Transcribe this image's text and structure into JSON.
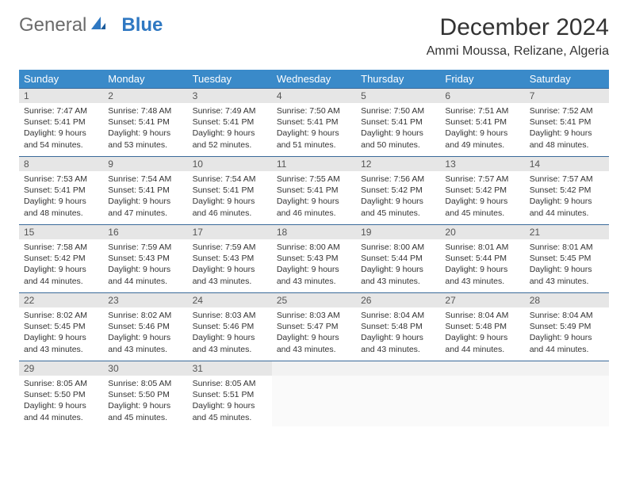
{
  "logo": {
    "text1": "General",
    "text2": "Blue"
  },
  "title": "December 2024",
  "location": "Ammi Moussa, Relizane, Algeria",
  "colors": {
    "header_bg": "#3a8ac9",
    "header_fg": "#ffffff",
    "row_border": "#3a6a9a",
    "daynum_bg": "#e6e6e6",
    "logo_blue": "#2f78c2"
  },
  "day_names": [
    "Sunday",
    "Monday",
    "Tuesday",
    "Wednesday",
    "Thursday",
    "Friday",
    "Saturday"
  ],
  "weeks": [
    [
      {
        "n": "1",
        "sr": "Sunrise: 7:47 AM",
        "ss": "Sunset: 5:41 PM",
        "d1": "Daylight: 9 hours",
        "d2": "and 54 minutes."
      },
      {
        "n": "2",
        "sr": "Sunrise: 7:48 AM",
        "ss": "Sunset: 5:41 PM",
        "d1": "Daylight: 9 hours",
        "d2": "and 53 minutes."
      },
      {
        "n": "3",
        "sr": "Sunrise: 7:49 AM",
        "ss": "Sunset: 5:41 PM",
        "d1": "Daylight: 9 hours",
        "d2": "and 52 minutes."
      },
      {
        "n": "4",
        "sr": "Sunrise: 7:50 AM",
        "ss": "Sunset: 5:41 PM",
        "d1": "Daylight: 9 hours",
        "d2": "and 51 minutes."
      },
      {
        "n": "5",
        "sr": "Sunrise: 7:50 AM",
        "ss": "Sunset: 5:41 PM",
        "d1": "Daylight: 9 hours",
        "d2": "and 50 minutes."
      },
      {
        "n": "6",
        "sr": "Sunrise: 7:51 AM",
        "ss": "Sunset: 5:41 PM",
        "d1": "Daylight: 9 hours",
        "d2": "and 49 minutes."
      },
      {
        "n": "7",
        "sr": "Sunrise: 7:52 AM",
        "ss": "Sunset: 5:41 PM",
        "d1": "Daylight: 9 hours",
        "d2": "and 48 minutes."
      }
    ],
    [
      {
        "n": "8",
        "sr": "Sunrise: 7:53 AM",
        "ss": "Sunset: 5:41 PM",
        "d1": "Daylight: 9 hours",
        "d2": "and 48 minutes."
      },
      {
        "n": "9",
        "sr": "Sunrise: 7:54 AM",
        "ss": "Sunset: 5:41 PM",
        "d1": "Daylight: 9 hours",
        "d2": "and 47 minutes."
      },
      {
        "n": "10",
        "sr": "Sunrise: 7:54 AM",
        "ss": "Sunset: 5:41 PM",
        "d1": "Daylight: 9 hours",
        "d2": "and 46 minutes."
      },
      {
        "n": "11",
        "sr": "Sunrise: 7:55 AM",
        "ss": "Sunset: 5:41 PM",
        "d1": "Daylight: 9 hours",
        "d2": "and 46 minutes."
      },
      {
        "n": "12",
        "sr": "Sunrise: 7:56 AM",
        "ss": "Sunset: 5:42 PM",
        "d1": "Daylight: 9 hours",
        "d2": "and 45 minutes."
      },
      {
        "n": "13",
        "sr": "Sunrise: 7:57 AM",
        "ss": "Sunset: 5:42 PM",
        "d1": "Daylight: 9 hours",
        "d2": "and 45 minutes."
      },
      {
        "n": "14",
        "sr": "Sunrise: 7:57 AM",
        "ss": "Sunset: 5:42 PM",
        "d1": "Daylight: 9 hours",
        "d2": "and 44 minutes."
      }
    ],
    [
      {
        "n": "15",
        "sr": "Sunrise: 7:58 AM",
        "ss": "Sunset: 5:42 PM",
        "d1": "Daylight: 9 hours",
        "d2": "and 44 minutes."
      },
      {
        "n": "16",
        "sr": "Sunrise: 7:59 AM",
        "ss": "Sunset: 5:43 PM",
        "d1": "Daylight: 9 hours",
        "d2": "and 44 minutes."
      },
      {
        "n": "17",
        "sr": "Sunrise: 7:59 AM",
        "ss": "Sunset: 5:43 PM",
        "d1": "Daylight: 9 hours",
        "d2": "and 43 minutes."
      },
      {
        "n": "18",
        "sr": "Sunrise: 8:00 AM",
        "ss": "Sunset: 5:43 PM",
        "d1": "Daylight: 9 hours",
        "d2": "and 43 minutes."
      },
      {
        "n": "19",
        "sr": "Sunrise: 8:00 AM",
        "ss": "Sunset: 5:44 PM",
        "d1": "Daylight: 9 hours",
        "d2": "and 43 minutes."
      },
      {
        "n": "20",
        "sr": "Sunrise: 8:01 AM",
        "ss": "Sunset: 5:44 PM",
        "d1": "Daylight: 9 hours",
        "d2": "and 43 minutes."
      },
      {
        "n": "21",
        "sr": "Sunrise: 8:01 AM",
        "ss": "Sunset: 5:45 PM",
        "d1": "Daylight: 9 hours",
        "d2": "and 43 minutes."
      }
    ],
    [
      {
        "n": "22",
        "sr": "Sunrise: 8:02 AM",
        "ss": "Sunset: 5:45 PM",
        "d1": "Daylight: 9 hours",
        "d2": "and 43 minutes."
      },
      {
        "n": "23",
        "sr": "Sunrise: 8:02 AM",
        "ss": "Sunset: 5:46 PM",
        "d1": "Daylight: 9 hours",
        "d2": "and 43 minutes."
      },
      {
        "n": "24",
        "sr": "Sunrise: 8:03 AM",
        "ss": "Sunset: 5:46 PM",
        "d1": "Daylight: 9 hours",
        "d2": "and 43 minutes."
      },
      {
        "n": "25",
        "sr": "Sunrise: 8:03 AM",
        "ss": "Sunset: 5:47 PM",
        "d1": "Daylight: 9 hours",
        "d2": "and 43 minutes."
      },
      {
        "n": "26",
        "sr": "Sunrise: 8:04 AM",
        "ss": "Sunset: 5:48 PM",
        "d1": "Daylight: 9 hours",
        "d2": "and 43 minutes."
      },
      {
        "n": "27",
        "sr": "Sunrise: 8:04 AM",
        "ss": "Sunset: 5:48 PM",
        "d1": "Daylight: 9 hours",
        "d2": "and 44 minutes."
      },
      {
        "n": "28",
        "sr": "Sunrise: 8:04 AM",
        "ss": "Sunset: 5:49 PM",
        "d1": "Daylight: 9 hours",
        "d2": "and 44 minutes."
      }
    ],
    [
      {
        "n": "29",
        "sr": "Sunrise: 8:05 AM",
        "ss": "Sunset: 5:50 PM",
        "d1": "Daylight: 9 hours",
        "d2": "and 44 minutes."
      },
      {
        "n": "30",
        "sr": "Sunrise: 8:05 AM",
        "ss": "Sunset: 5:50 PM",
        "d1": "Daylight: 9 hours",
        "d2": "and 45 minutes."
      },
      {
        "n": "31",
        "sr": "Sunrise: 8:05 AM",
        "ss": "Sunset: 5:51 PM",
        "d1": "Daylight: 9 hours",
        "d2": "and 45 minutes."
      },
      {
        "empty": true
      },
      {
        "empty": true
      },
      {
        "empty": true
      },
      {
        "empty": true
      }
    ]
  ]
}
